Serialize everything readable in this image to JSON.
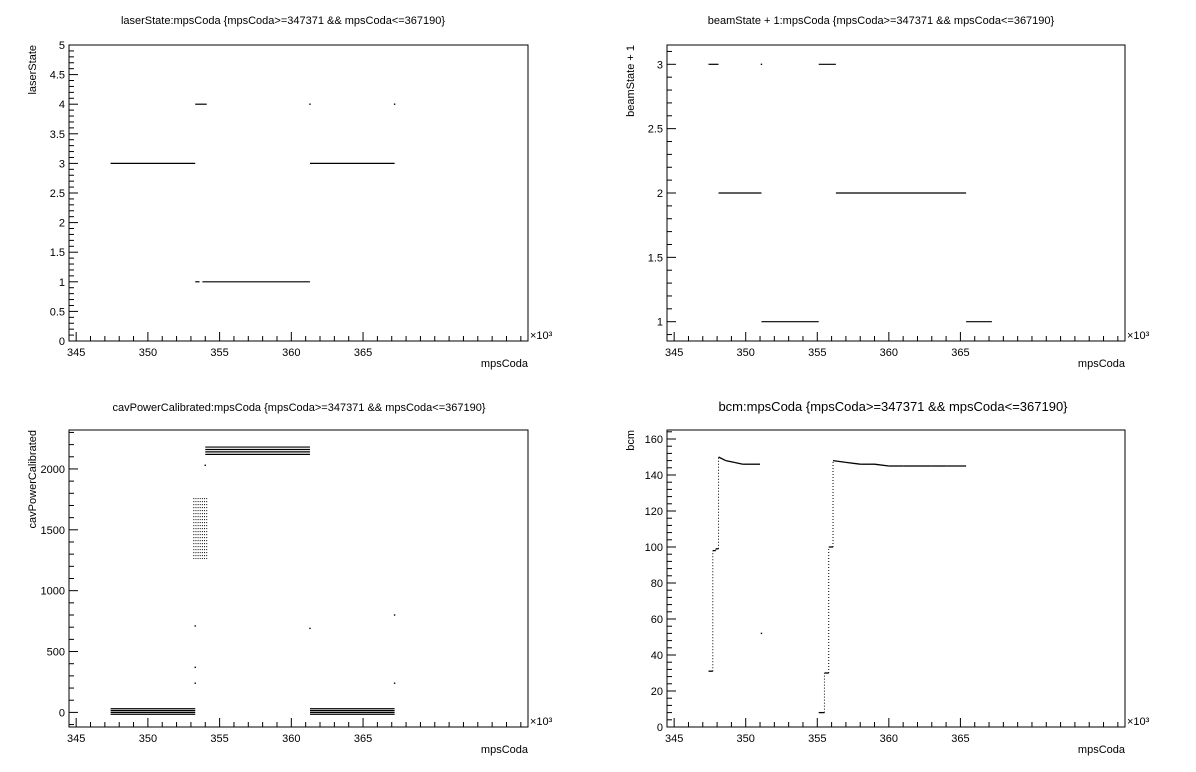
{
  "chart_data": [
    {
      "type": "scatter",
      "title": "laserState:mpsCoda {mpsCoda>=347371 && mpsCoda<=367190}",
      "xlabel": "mpsCoda",
      "ylabel": "laserState",
      "x_multiplier": "×10³",
      "xlim": [
        344.5,
        376.5
      ],
      "ylim": [
        0,
        5
      ],
      "xticks": [
        345,
        350,
        355,
        360,
        365
      ],
      "yticks": [
        0,
        0.5,
        1,
        1.5,
        2,
        2.5,
        3,
        3.5,
        4,
        4.5,
        5
      ],
      "x_units": "thousands",
      "segments": [
        {
          "x": [
            347.4,
            353.3
          ],
          "y": 3
        },
        {
          "x": [
            353.3,
            354.1
          ],
          "y": 4
        },
        {
          "x": [
            353.3,
            353.6
          ],
          "y": 1
        },
        {
          "x": [
            353.8,
            361.3
          ],
          "y": 1
        },
        {
          "x": [
            361.3,
            367.2
          ],
          "y": 3
        }
      ],
      "points": [
        [
          361.3,
          4
        ],
        [
          367.2,
          4
        ]
      ]
    },
    {
      "type": "scatter",
      "title": "beamState + 1:mpsCoda {mpsCoda>=347371 && mpsCoda<=367190}",
      "xlabel": "mpsCoda",
      "ylabel": "beamState + 1",
      "x_multiplier": "×10³",
      "xlim": [
        344.5,
        376.5
      ],
      "ylim": [
        0.85,
        3.15
      ],
      "xticks": [
        345,
        350,
        355,
        360,
        365
      ],
      "yticks": [
        1,
        1.5,
        2,
        2.5,
        3
      ],
      "x_units": "thousands",
      "segments": [
        {
          "x": [
            347.4,
            348.1
          ],
          "y": 3
        },
        {
          "x": [
            348.1,
            351.1
          ],
          "y": 2
        },
        {
          "x": [
            351.1,
            355.1
          ],
          "y": 1
        },
        {
          "x": [
            355.1,
            356.3
          ],
          "y": 3
        },
        {
          "x": [
            356.3,
            365.4
          ],
          "y": 2
        },
        {
          "x": [
            365.4,
            367.2
          ],
          "y": 1
        }
      ],
      "points": [
        [
          351.1,
          3
        ]
      ]
    },
    {
      "type": "scatter",
      "title": "cavPowerCalibrated:mpsCoda {mpsCoda>=347371 && mpsCoda<=367190}",
      "xlabel": "mpsCoda",
      "ylabel": "cavPowerCalibrated",
      "x_multiplier": "×10³",
      "xlim": [
        344.5,
        376.5
      ],
      "ylim": [
        -120,
        2320
      ],
      "xticks": [
        345,
        350,
        355,
        360,
        365
      ],
      "yticks": [
        0,
        500,
        1000,
        1500,
        2000
      ],
      "x_units": "thousands",
      "segments": [
        {
          "x": [
            347.4,
            353.3
          ],
          "y": 30
        },
        {
          "x": [
            347.4,
            353.3
          ],
          "y": 15
        },
        {
          "x": [
            347.4,
            353.3
          ],
          "y": 0
        },
        {
          "x": [
            347.4,
            353.3
          ],
          "y": -15
        },
        {
          "x": [
            354.0,
            361.3
          ],
          "y": 2180
        },
        {
          "x": [
            354.0,
            361.3
          ],
          "y": 2160
        },
        {
          "x": [
            354.0,
            361.3
          ],
          "y": 2140
        },
        {
          "x": [
            354.0,
            361.3
          ],
          "y": 2120
        },
        {
          "x": [
            361.3,
            367.2
          ],
          "y": 30
        },
        {
          "x": [
            361.3,
            367.2
          ],
          "y": 15
        },
        {
          "x": [
            361.3,
            367.2
          ],
          "y": 0
        },
        {
          "x": [
            361.3,
            367.2
          ],
          "y": -15
        }
      ],
      "points": [
        [
          353.3,
          710
        ],
        [
          353.3,
          370
        ],
        [
          353.3,
          240
        ],
        [
          354.0,
          2030
        ],
        [
          361.3,
          690
        ],
        [
          367.2,
          800
        ],
        [
          367.2,
          240
        ]
      ],
      "transition_band": {
        "x": [
          353.2,
          354.1
        ],
        "y": [
          1260,
          1760
        ]
      }
    },
    {
      "type": "line",
      "title": "bcm:mpsCoda {mpsCoda>=347371 && mpsCoda<=367190}",
      "xlabel": "mpsCoda",
      "ylabel": "bcm",
      "x_multiplier": "×10³",
      "xlim": [
        344.5,
        376.5
      ],
      "ylim": [
        0,
        165
      ],
      "xticks": [
        345,
        350,
        355,
        360,
        365
      ],
      "yticks": [
        0,
        20,
        40,
        60,
        80,
        100,
        120,
        140,
        160
      ],
      "x_units": "thousands",
      "series": [
        {
          "x": [
            347.4,
            347.7,
            347.7,
            347.9,
            347.9,
            348.1,
            348.1,
            348.6,
            349.2,
            349.8,
            350.4,
            351.0
          ],
          "y": [
            31,
            31,
            98,
            98,
            99,
            99,
            150,
            148,
            147,
            146,
            146,
            146
          ]
        },
        {
          "x": [
            355.1,
            355.5,
            355.5,
            355.8,
            355.8,
            356.1,
            356.1,
            357.0,
            358.0,
            359.0,
            360.0,
            361.0,
            362.0,
            363.0,
            364.0,
            365.4
          ],
          "y": [
            8,
            8,
            30,
            30,
            100,
            100,
            148,
            147,
            146,
            146,
            145,
            145,
            145,
            145,
            145,
            145
          ]
        }
      ],
      "points": [
        [
          351.1,
          52
        ]
      ]
    }
  ]
}
